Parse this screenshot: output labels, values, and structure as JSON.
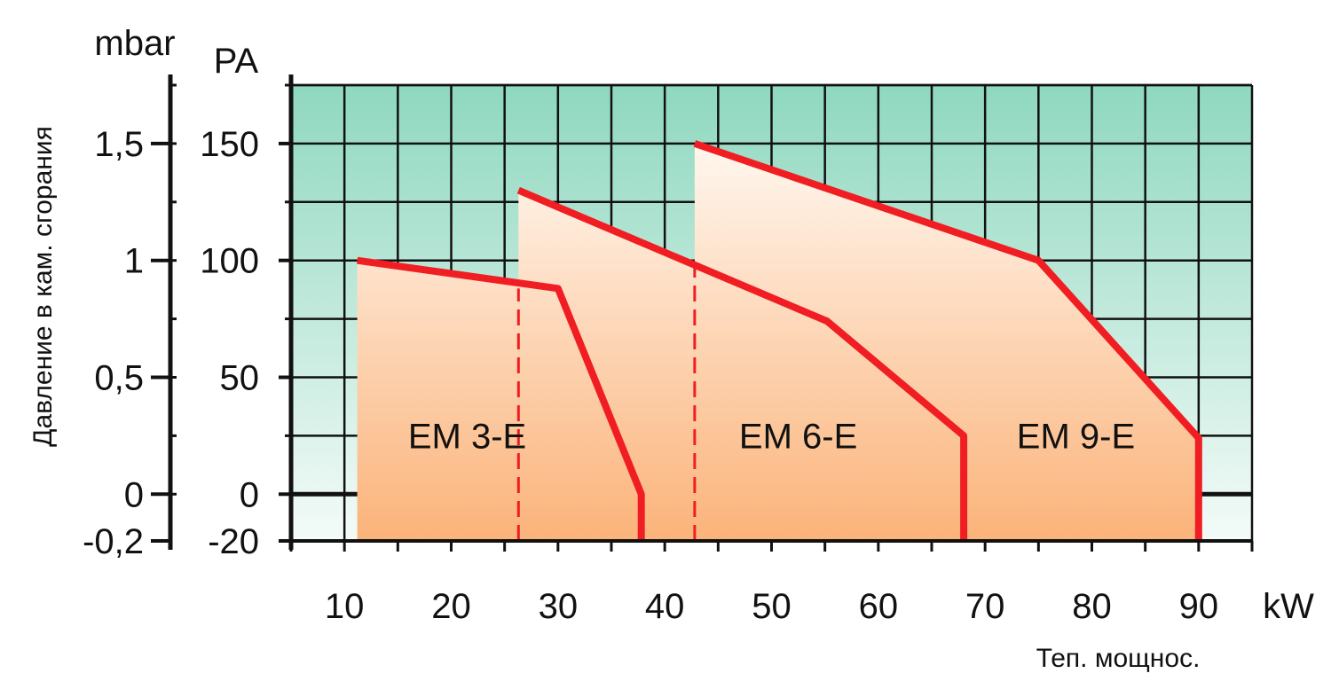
{
  "chart_data": {
    "type": "area",
    "title": "",
    "xlabel": "Теп. мощнос.",
    "x_unit": "kW",
    "ylabel": "Давление в кам. сгорания",
    "y_unit_pa": "PA",
    "y_unit_mbar": "mbar",
    "xlim": [
      5,
      95
    ],
    "ylim": [
      -20,
      175
    ],
    "x_ticks": [
      10,
      20,
      30,
      40,
      50,
      60,
      70,
      80,
      90
    ],
    "y_ticks_pa": [
      -20,
      0,
      50,
      100,
      150
    ],
    "y_tick_labels_pa": [
      "-20",
      "0",
      "50",
      "100",
      "150"
    ],
    "y_ticks_mbar": [
      -20,
      0,
      50,
      100,
      150
    ],
    "y_tick_labels_mbar": [
      "-0,2",
      "0",
      "0,5",
      "1",
      "1,5"
    ],
    "grid": true,
    "background_colors": {
      "top": "#8fd8bf",
      "bottom": "#f4fbf8"
    },
    "area_colors": {
      "top": "#fff7ef",
      "bottom": "#fbb37a"
    },
    "line_color": "#f01e23",
    "series": [
      {
        "name": "EM 3-E",
        "points": [
          [
            11.2,
            -20
          ],
          [
            11.2,
            100
          ],
          [
            30,
            88
          ],
          [
            37.8,
            0
          ],
          [
            37.8,
            -20
          ]
        ],
        "label_pos": [
          21.5,
          25
        ]
      },
      {
        "name": "EM 6-E",
        "points": [
          [
            26.3,
            -20
          ],
          [
            26.3,
            130
          ],
          [
            55.2,
            74
          ],
          [
            68,
            25
          ],
          [
            68,
            -20
          ]
        ],
        "label_pos": [
          52.5,
          25
        ]
      },
      {
        "name": "EM 9-E",
        "points": [
          [
            42.8,
            -20
          ],
          [
            42.8,
            150
          ],
          [
            75,
            100
          ],
          [
            90,
            24
          ],
          [
            90,
            -20
          ]
        ],
        "label_pos": [
          78.5,
          25
        ]
      }
    ],
    "dividers": [
      {
        "x": 26.3,
        "y_from": -20,
        "y_to": 88
      },
      {
        "x": 42.8,
        "y_from": -20,
        "y_to": 98
      }
    ]
  }
}
